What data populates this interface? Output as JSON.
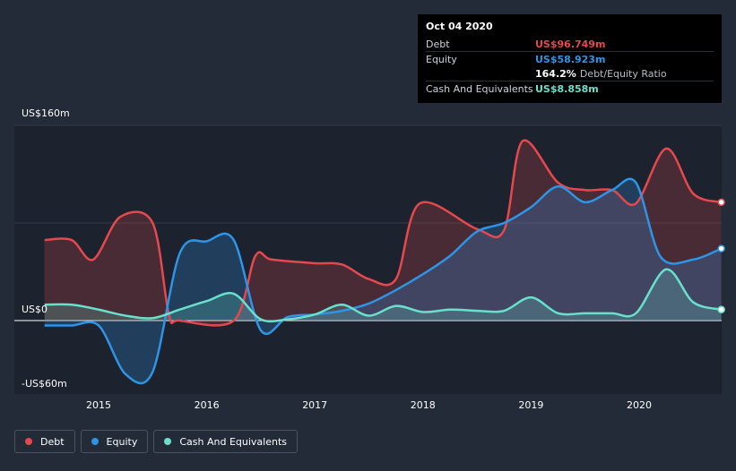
{
  "tooltip": {
    "date": "Oct 04 2020",
    "debt_label": "Debt",
    "debt_value": "US$96.749m",
    "equity_label": "Equity",
    "equity_value": "US$58.923m",
    "ratio_value": "164.2%",
    "ratio_label": "Debt/Equity Ratio",
    "cash_label": "Cash And Equivalents",
    "cash_value": "US$8.858m"
  },
  "legend": [
    {
      "label": "Debt",
      "color": "#e5484d"
    },
    {
      "label": "Equity",
      "color": "#2e94e6"
    },
    {
      "label": "Cash And Equivalents",
      "color": "#68e0cc"
    }
  ],
  "chart_data": {
    "type": "area",
    "y_tick_labels": [
      "US$160m",
      "US$0",
      "-US$60m"
    ],
    "y_ticks": [
      160,
      0,
      -60
    ],
    "ylim": [
      -60,
      160
    ],
    "x_tick_labels": [
      "2015",
      "2016",
      "2017",
      "2018",
      "2019",
      "2020"
    ],
    "x_ticks": [
      2015,
      2016,
      2017,
      2018,
      2019,
      2020
    ],
    "xlim": [
      2014.5,
      2020.76
    ],
    "series": [
      {
        "name": "Debt",
        "color": "#e5484d",
        "points": [
          [
            2014.5,
            66
          ],
          [
            2014.75,
            66
          ],
          [
            2014.95,
            50
          ],
          [
            2015.2,
            85
          ],
          [
            2015.5,
            80
          ],
          [
            2015.65,
            5
          ],
          [
            2015.75,
            0
          ],
          [
            2016.25,
            0
          ],
          [
            2016.45,
            53
          ],
          [
            2016.6,
            50
          ],
          [
            2017.0,
            47
          ],
          [
            2017.25,
            46
          ],
          [
            2017.5,
            34
          ],
          [
            2017.75,
            34
          ],
          [
            2017.97,
            96
          ],
          [
            2018.5,
            75
          ],
          [
            2018.75,
            74
          ],
          [
            2018.92,
            147
          ],
          [
            2019.25,
            113
          ],
          [
            2019.5,
            107
          ],
          [
            2019.75,
            107
          ],
          [
            2019.97,
            96
          ],
          [
            2020.25,
            141
          ],
          [
            2020.5,
            104
          ],
          [
            2020.76,
            97
          ]
        ]
      },
      {
        "name": "Equity",
        "color": "#2e94e6",
        "points": [
          [
            2014.5,
            -4
          ],
          [
            2014.75,
            -4
          ],
          [
            2015.0,
            -4
          ],
          [
            2015.25,
            -44
          ],
          [
            2015.5,
            -42
          ],
          [
            2015.75,
            55
          ],
          [
            2016.0,
            65
          ],
          [
            2016.25,
            66
          ],
          [
            2016.5,
            -8
          ],
          [
            2016.75,
            3
          ],
          [
            2017.0,
            5
          ],
          [
            2017.25,
            8
          ],
          [
            2017.5,
            14
          ],
          [
            2017.75,
            25
          ],
          [
            2018.0,
            38
          ],
          [
            2018.25,
            53
          ],
          [
            2018.5,
            73
          ],
          [
            2018.75,
            80
          ],
          [
            2019.0,
            93
          ],
          [
            2019.25,
            110
          ],
          [
            2019.5,
            97
          ],
          [
            2019.75,
            107
          ],
          [
            2019.97,
            113
          ],
          [
            2020.2,
            52
          ],
          [
            2020.5,
            50
          ],
          [
            2020.76,
            59
          ]
        ]
      },
      {
        "name": "Cash And Equivalents",
        "color": "#68e0cc",
        "points": [
          [
            2014.5,
            13
          ],
          [
            2014.75,
            13
          ],
          [
            2015.0,
            9
          ],
          [
            2015.25,
            4
          ],
          [
            2015.5,
            2
          ],
          [
            2015.75,
            9
          ],
          [
            2016.0,
            16
          ],
          [
            2016.25,
            22
          ],
          [
            2016.5,
            1
          ],
          [
            2016.75,
            1
          ],
          [
            2017.0,
            5
          ],
          [
            2017.25,
            13
          ],
          [
            2017.5,
            4
          ],
          [
            2017.75,
            12
          ],
          [
            2018.0,
            7
          ],
          [
            2018.25,
            9
          ],
          [
            2018.5,
            8
          ],
          [
            2018.75,
            8
          ],
          [
            2019.0,
            19
          ],
          [
            2019.25,
            6
          ],
          [
            2019.5,
            6
          ],
          [
            2019.75,
            6
          ],
          [
            2019.97,
            6
          ],
          [
            2020.25,
            42
          ],
          [
            2020.5,
            15
          ],
          [
            2020.76,
            9
          ]
        ]
      }
    ]
  }
}
